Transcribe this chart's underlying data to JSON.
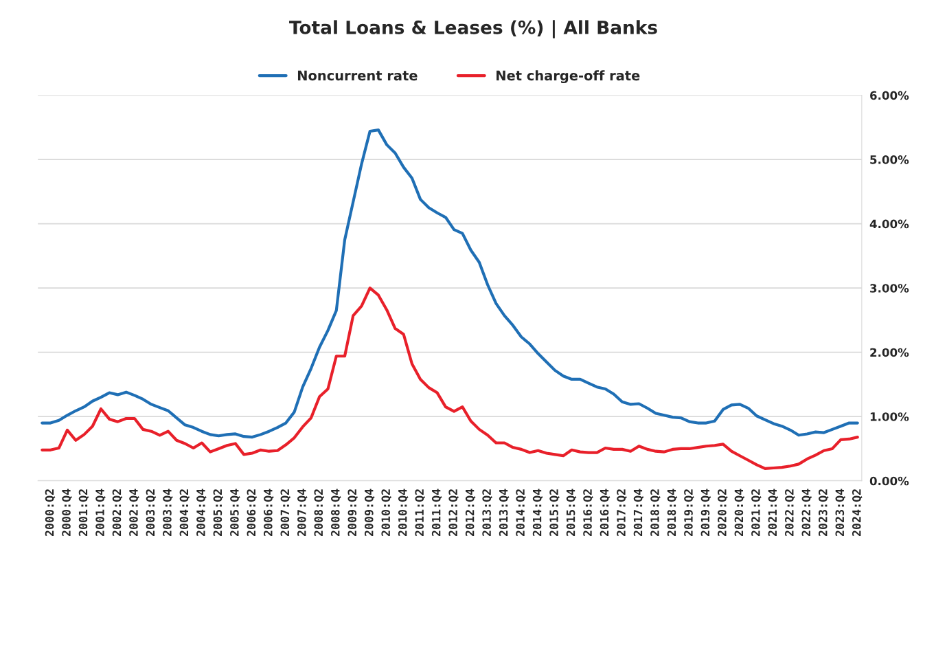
{
  "chart_data": {
    "type": "line",
    "title": "Total Loans & Leases (%) | All Banks",
    "categories": [
      null,
      "2000:Q2",
      null,
      "2000:Q4",
      null,
      "2001:Q2",
      null,
      "2001:Q4",
      null,
      "2002:Q2",
      null,
      "2002:Q4",
      null,
      "2003:Q2",
      null,
      "2003:Q4",
      null,
      "2004:Q2",
      null,
      "2004:Q4",
      null,
      "2005:Q2",
      null,
      "2005:Q4",
      null,
      "2006:Q2",
      null,
      "2006:Q4",
      null,
      "2007:Q2",
      null,
      "2007:Q4",
      null,
      "2008:Q2",
      null,
      "2008:Q4",
      null,
      "2009:Q2",
      null,
      "2009:Q4",
      null,
      "2010:Q2",
      null,
      "2010:Q4",
      null,
      "2011:Q2",
      null,
      "2011:Q4",
      null,
      "2012:Q2",
      null,
      "2012:Q4",
      null,
      "2013:Q2",
      null,
      "2013:Q4",
      null,
      "2014:Q2",
      null,
      "2014:Q4",
      null,
      "2015:Q2",
      null,
      "2015:Q4",
      null,
      "2016:Q2",
      null,
      "2016:Q4",
      null,
      "2017:Q2",
      null,
      "2017:Q4",
      null,
      "2018:Q2",
      null,
      "2018:Q4",
      null,
      "2019:Q2",
      null,
      "2019:Q4",
      null,
      "2020:Q2",
      null,
      "2020:Q4",
      null,
      "2021:Q2",
      null,
      "2021:Q4",
      null,
      "2022:Q2",
      null,
      "2022:Q4",
      null,
      "2023:Q2",
      null,
      "2023:Q4",
      null,
      "2024:Q2"
    ],
    "series": [
      {
        "name": "Noncurrent rate",
        "color": "#1f6fb5",
        "values": [
          0.9,
          0.9,
          0.94,
          1.02,
          1.09,
          1.15,
          1.24,
          1.3,
          1.37,
          1.34,
          1.38,
          1.33,
          1.27,
          1.19,
          1.14,
          1.09,
          0.98,
          0.87,
          0.83,
          0.77,
          0.72,
          0.7,
          0.72,
          0.73,
          0.69,
          0.68,
          0.72,
          0.77,
          0.83,
          0.9,
          1.07,
          1.46,
          1.75,
          2.08,
          2.34,
          2.65,
          3.75,
          4.34,
          4.93,
          5.44,
          5.46,
          5.23,
          5.1,
          4.88,
          4.71,
          4.38,
          4.25,
          4.17,
          4.1,
          3.91,
          3.85,
          3.59,
          3.4,
          3.05,
          2.76,
          2.57,
          2.42,
          2.24,
          2.13,
          1.98,
          1.85,
          1.72,
          1.63,
          1.58,
          1.58,
          1.52,
          1.46,
          1.43,
          1.35,
          1.23,
          1.19,
          1.2,
          1.13,
          1.05,
          1.02,
          0.99,
          0.98,
          0.92,
          0.9,
          0.9,
          0.93,
          1.11,
          1.18,
          1.19,
          1.13,
          1.01,
          0.95,
          0.89,
          0.85,
          0.79,
          0.71,
          0.73,
          0.76,
          0.75,
          0.8,
          0.85,
          0.9,
          0.9
        ]
      },
      {
        "name": "Net charge-off rate",
        "color": "#e8202a",
        "values": [
          0.48,
          0.48,
          0.51,
          0.79,
          0.63,
          0.72,
          0.85,
          1.12,
          0.96,
          0.92,
          0.97,
          0.97,
          0.8,
          0.77,
          0.71,
          0.77,
          0.63,
          0.58,
          0.51,
          0.59,
          0.45,
          0.5,
          0.55,
          0.58,
          0.41,
          0.43,
          0.48,
          0.46,
          0.47,
          0.56,
          0.67,
          0.84,
          0.98,
          1.31,
          1.43,
          1.94,
          1.94,
          2.57,
          2.72,
          3.0,
          2.89,
          2.66,
          2.37,
          2.28,
          1.82,
          1.58,
          1.45,
          1.37,
          1.15,
          1.08,
          1.15,
          0.93,
          0.8,
          0.71,
          0.59,
          0.59,
          0.52,
          0.49,
          0.44,
          0.47,
          0.43,
          0.41,
          0.39,
          0.48,
          0.45,
          0.44,
          0.44,
          0.51,
          0.49,
          0.49,
          0.46,
          0.54,
          0.49,
          0.46,
          0.45,
          0.49,
          0.5,
          0.5,
          0.52,
          0.54,
          0.55,
          0.57,
          0.46,
          0.39,
          0.32,
          0.25,
          0.19,
          0.2,
          0.21,
          0.23,
          0.26,
          0.34,
          0.4,
          0.47,
          0.5,
          0.64,
          0.65,
          0.68
        ]
      }
    ],
    "ylim": [
      0,
      6
    ],
    "yticks": [
      {
        "value": 0,
        "label": "0.00%"
      },
      {
        "value": 1,
        "label": "1.00%"
      },
      {
        "value": 2,
        "label": "2.00%"
      },
      {
        "value": 3,
        "label": "3.00%"
      },
      {
        "value": 4,
        "label": "4.00%"
      },
      {
        "value": 5,
        "label": "5.00%"
      },
      {
        "value": 6,
        "label": "6.00%"
      }
    ],
    "grid": "y",
    "legend": "top",
    "marker": "none",
    "line_style": "solid"
  }
}
